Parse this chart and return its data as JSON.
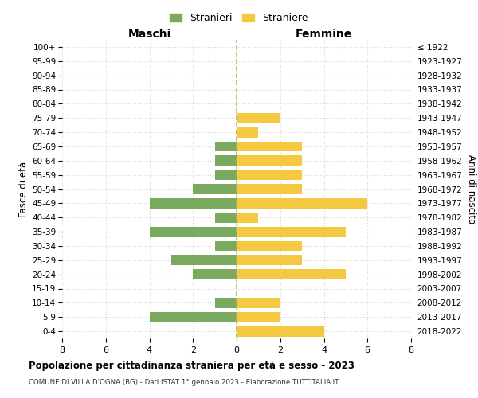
{
  "age_groups": [
    "100+",
    "95-99",
    "90-94",
    "85-89",
    "80-84",
    "75-79",
    "70-74",
    "65-69",
    "60-64",
    "55-59",
    "50-54",
    "45-49",
    "40-44",
    "35-39",
    "30-34",
    "25-29",
    "20-24",
    "15-19",
    "10-14",
    "5-9",
    "0-4"
  ],
  "birth_years": [
    "≤ 1922",
    "1923-1927",
    "1928-1932",
    "1933-1937",
    "1938-1942",
    "1943-1947",
    "1948-1952",
    "1953-1957",
    "1958-1962",
    "1963-1967",
    "1968-1972",
    "1973-1977",
    "1978-1982",
    "1983-1987",
    "1988-1992",
    "1993-1997",
    "1998-2002",
    "2003-2007",
    "2008-2012",
    "2013-2017",
    "2018-2022"
  ],
  "maschi": [
    0,
    0,
    0,
    0,
    0,
    0,
    0,
    1,
    1,
    1,
    2,
    4,
    1,
    4,
    1,
    3,
    2,
    0,
    1,
    4,
    0
  ],
  "femmine": [
    0,
    0,
    0,
    0,
    0,
    2,
    1,
    3,
    3,
    3,
    3,
    6,
    1,
    5,
    3,
    3,
    5,
    0,
    2,
    2,
    4
  ],
  "maschi_color": "#7aaa5f",
  "femmine_color": "#f5c842",
  "title": "Popolazione per cittadinanza straniera per età e sesso - 2023",
  "subtitle": "COMUNE DI VILLA D'OGNA (BG) - Dati ISTAT 1° gennaio 2023 - Elaborazione TUTTITALIA.IT",
  "xlabel_left": "Maschi",
  "xlabel_right": "Femmine",
  "ylabel_left": "Fasce di età",
  "ylabel_right": "Anni di nascita",
  "legend_stranieri": "Stranieri",
  "legend_straniere": "Straniere",
  "xlim": 8,
  "background_color": "#ffffff",
  "grid_color": "#d8d8d8"
}
